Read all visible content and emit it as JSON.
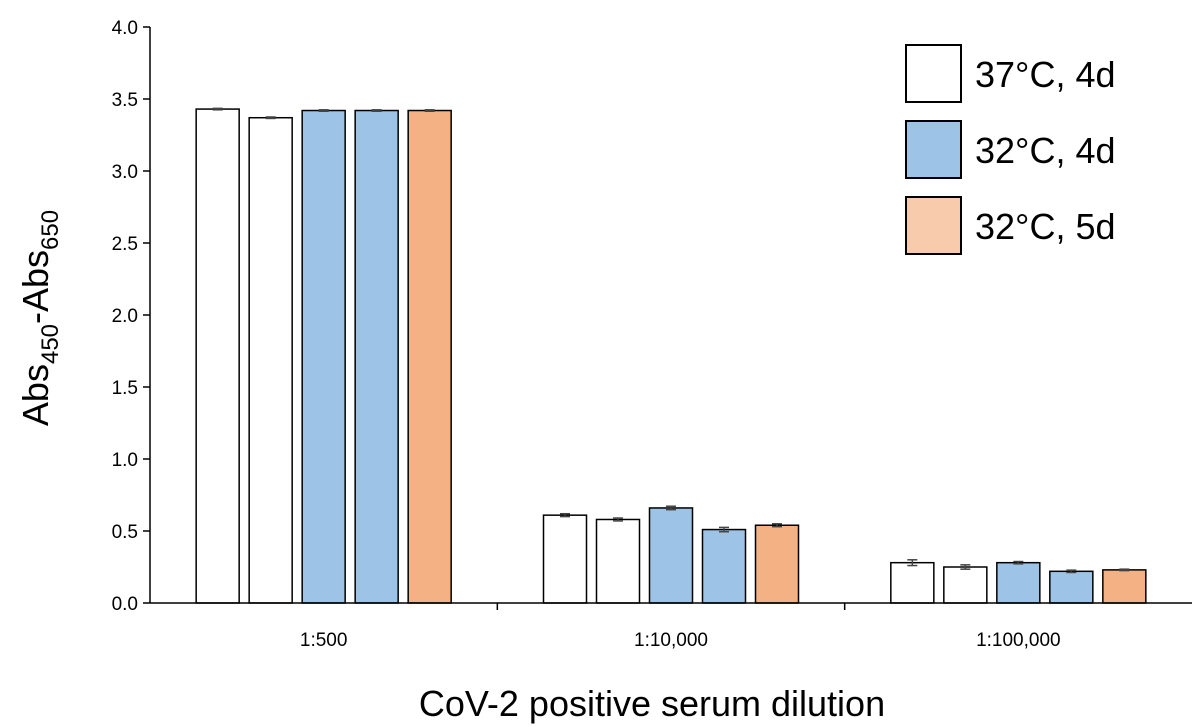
{
  "chart_data": {
    "type": "bar",
    "categories": [
      "1:500",
      "1:10,000",
      "1:100,000"
    ],
    "series": [
      {
        "values": [
          3.43,
          0.61,
          0.28
        ],
        "errors": [
          0.005,
          0.01,
          0.02
        ],
        "color": "#ffffff",
        "legend_index": 0
      },
      {
        "values": [
          3.37,
          0.58,
          0.25
        ],
        "errors": [
          0.005,
          0.01,
          0.015
        ],
        "color": "#ffffff",
        "legend_index": 0
      },
      {
        "values": [
          3.42,
          0.66,
          0.28
        ],
        "errors": [
          0.005,
          0.012,
          0.008
        ],
        "color": "#9dc3e6",
        "legend_index": 1
      },
      {
        "values": [
          3.42,
          0.51,
          0.22
        ],
        "errors": [
          0.005,
          0.015,
          0.008
        ],
        "color": "#9dc3e6",
        "legend_index": 1
      },
      {
        "values": [
          3.42,
          0.54,
          0.23
        ],
        "errors": [
          0.005,
          0.01,
          0.005
        ],
        "color": "#f4b183",
        "legend_index": 2
      }
    ],
    "legend": [
      {
        "label": "37°C, 4d",
        "color": "#ffffff"
      },
      {
        "label": "32°C, 4d",
        "color": "#9dc3e6"
      },
      {
        "label": "32°C, 5d",
        "color": "#f8cbad"
      }
    ],
    "legend_position": "top-right",
    "xlabel": "CoV-2 positive serum dilution",
    "ylabel": {
      "base": "Abs",
      "sub1": "450",
      "mid": "-Abs",
      "sub2": "650"
    },
    "ylim": [
      0,
      4
    ],
    "yticks": [
      "0.0",
      "0.5",
      "1.0",
      "1.5",
      "2.0",
      "2.5",
      "3.0",
      "3.5",
      "4.0"
    ],
    "grid": false
  }
}
